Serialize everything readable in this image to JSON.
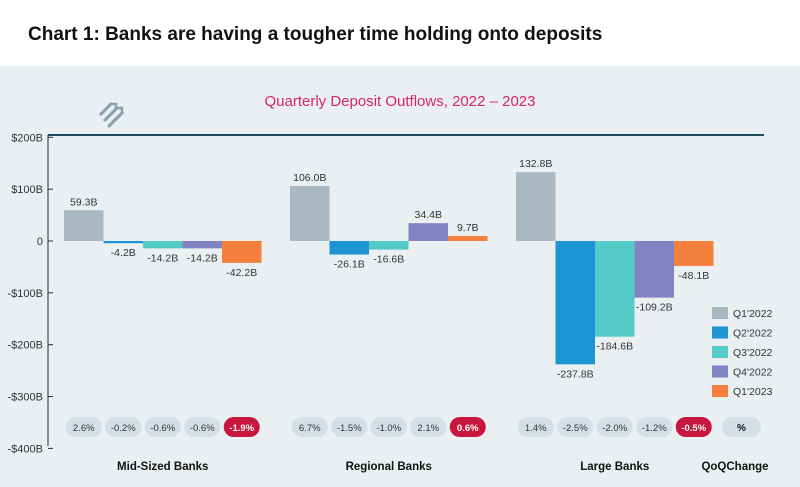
{
  "header": {
    "title": "Chart 1: Banks are having a tougher time holding onto deposits"
  },
  "logo": {
    "icon": "hatch-arrows-logo-icon"
  },
  "colors": {
    "Q1'2022": "#a9b8c3",
    "Q2'2022": "#1d95d4",
    "Q3'2022": "#55cbc9",
    "Q4'2022": "#8283c3",
    "Q1'2023": "#f57f3d",
    "title": "#d6246e",
    "pill": "#d5dfe5",
    "pill_highlight": "#c8163e",
    "axis": "#1d4e5f"
  },
  "qoq_label": "QoQChange",
  "qoq_symbol": "%",
  "chart_data": {
    "type": "bar",
    "title": "Quarterly Deposit Outflows, 2022 – 2023",
    "xlabel": "",
    "ylabel": "",
    "ylim": [
      -400,
      200
    ],
    "yticks": [
      200,
      100,
      0,
      -100,
      -200,
      -300,
      -400
    ],
    "ytick_labels": [
      "$200B",
      "$100B",
      "0",
      "-$100B",
      "-$200B",
      "-$300B",
      "-$400B"
    ],
    "categories": [
      "Mid-Sized Banks",
      "Regional Banks",
      "Large Banks"
    ],
    "series": [
      {
        "name": "Q1'2022",
        "values": [
          59.3,
          106.0,
          132.8
        ],
        "labels": [
          "59.3B",
          "106.0B",
          "132.8B"
        ],
        "qoq": [
          "2.6%",
          "6.7%",
          "1.4%"
        ]
      },
      {
        "name": "Q2'2022",
        "values": [
          -4.2,
          -26.1,
          -237.8
        ],
        "labels": [
          "-4.2B",
          "-26.1B",
          "-237.8B"
        ],
        "qoq": [
          "-0.2%",
          "-1.5%",
          "-2.5%"
        ]
      },
      {
        "name": "Q3'2022",
        "values": [
          -14.2,
          -16.6,
          -184.6
        ],
        "labels": [
          "-14.2B",
          "-16.6B",
          "-184.6B"
        ],
        "qoq": [
          "-0.6%",
          "-1.0%",
          "-2.0%"
        ]
      },
      {
        "name": "Q4'2022",
        "values": [
          -14.2,
          34.4,
          -109.2
        ],
        "labels": [
          "-14.2B",
          "34.4B",
          "-109.2B"
        ],
        "qoq": [
          "-0.6%",
          "2.1%",
          "-1.2%"
        ]
      },
      {
        "name": "Q1'2023",
        "values": [
          -42.2,
          9.7,
          -48.1
        ],
        "labels": [
          "-42.2B",
          "9.7B",
          "-48.1B"
        ],
        "qoq": [
          "-1.9%",
          "0.6%",
          "-0.5%"
        ]
      }
    ],
    "legend": {
      "position": "right"
    },
    "grid": false
  }
}
